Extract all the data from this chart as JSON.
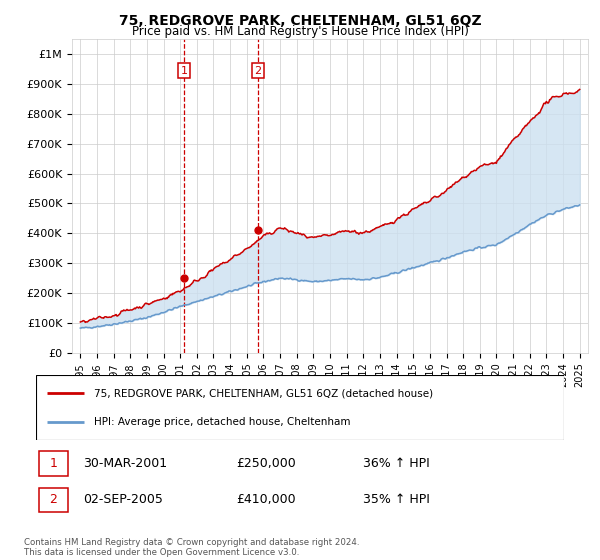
{
  "title": "75, REDGROVE PARK, CHELTENHAM, GL51 6QZ",
  "subtitle": "Price paid vs. HM Land Registry's House Price Index (HPI)",
  "legend_line1": "75, REDGROVE PARK, CHELTENHAM, GL51 6QZ (detached house)",
  "legend_line2": "HPI: Average price, detached house, Cheltenham",
  "footer": "Contains HM Land Registry data © Crown copyright and database right 2024.\nThis data is licensed under the Open Government Licence v3.0.",
  "sale1_date": "30-MAR-2001",
  "sale1_price": "£250,000",
  "sale1_hpi": "36% ↑ HPI",
  "sale2_date": "02-SEP-2005",
  "sale2_price": "£410,000",
  "sale2_hpi": "35% ↑ HPI",
  "sale1_x": 2001.24,
  "sale1_y": 250000,
  "sale2_x": 2005.67,
  "sale2_y": 410000,
  "red_color": "#cc0000",
  "blue_color": "#6699cc",
  "shade_color": "#cce0f0",
  "grid_color": "#cccccc",
  "ylim_min": 0,
  "ylim_max": 1050000,
  "xlim_min": 1994.5,
  "xlim_max": 2025.5,
  "yticks": [
    0,
    100000,
    200000,
    300000,
    400000,
    500000,
    600000,
    700000,
    800000,
    900000,
    1000000
  ],
  "ytick_labels": [
    "£0",
    "£100K",
    "£200K",
    "£300K",
    "£400K",
    "£500K",
    "£600K",
    "£700K",
    "£800K",
    "£900K",
    "£1M"
  ],
  "xticks": [
    1995,
    1996,
    1997,
    1998,
    1999,
    2000,
    2001,
    2002,
    2003,
    2004,
    2005,
    2006,
    2007,
    2008,
    2009,
    2010,
    2011,
    2012,
    2013,
    2014,
    2015,
    2016,
    2017,
    2018,
    2019,
    2020,
    2021,
    2022,
    2023,
    2024,
    2025
  ],
  "hpi_x": [
    1995,
    1996,
    1997,
    1998,
    1999,
    2000,
    2001,
    2002,
    2003,
    2004,
    2005,
    2006,
    2007,
    2008,
    2009,
    2010,
    2011,
    2012,
    2013,
    2014,
    2015,
    2016,
    2017,
    2018,
    2019,
    2020,
    2021,
    2022,
    2023,
    2024,
    2025
  ],
  "hpi_y": [
    82000,
    88000,
    96000,
    106000,
    118000,
    136000,
    155000,
    172000,
    188000,
    205000,
    222000,
    238000,
    250000,
    245000,
    238000,
    242000,
    248000,
    245000,
    252000,
    268000,
    285000,
    300000,
    318000,
    338000,
    352000,
    362000,
    395000,
    430000,
    460000,
    480000,
    495000
  ],
  "red_y": [
    100000,
    113000,
    126000,
    145000,
    162000,
    182000,
    208000,
    242000,
    278000,
    312000,
    348000,
    388000,
    418000,
    400000,
    382000,
    392000,
    408000,
    402000,
    418000,
    448000,
    478000,
    508000,
    542000,
    588000,
    622000,
    638000,
    708000,
    772000,
    838000,
    868000,
    875000
  ]
}
